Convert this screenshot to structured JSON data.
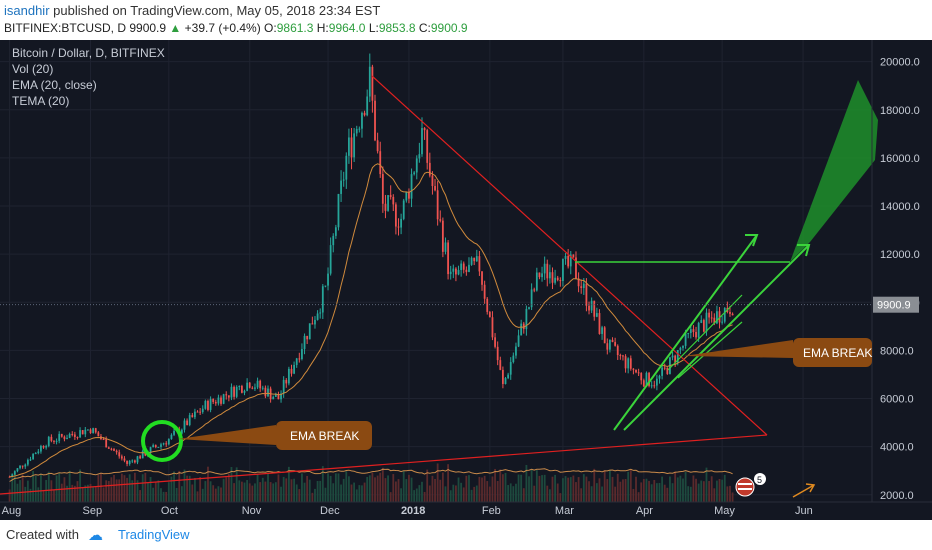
{
  "header": {
    "author": "isandhir",
    "published": "published on TradingView.com, May 05, 2018 23:34 EST",
    "symbol": "BITFINEX:BTCUSD, D",
    "last": "9900.9",
    "up_arrow": "▲",
    "change": "+39.7 (+0.4%)",
    "o_label": "O:",
    "o_val": "9861.3",
    "h_label": "H:",
    "h_val": "9964.0",
    "l_label": "L:",
    "l_val": "9853.8",
    "c_label": "C:",
    "c_val": "9900.9"
  },
  "legend": {
    "title": "Bitcoin / Dollar, D, BITFINEX",
    "vol": "Vol (20)",
    "ema": "EMA (20, close)",
    "tema": "TEMA (20)"
  },
  "annotations": {
    "ema_break_1": "EMA BREAK",
    "ema_break_2": "EMA BREAK",
    "badge_count": "5"
  },
  "footer": {
    "created": "Created with",
    "brand": "TradingView"
  },
  "colors": {
    "background": "#131722",
    "up": "#26a69a",
    "down": "#ef5350",
    "ema": "#d08a3c",
    "trendline": "#e02020",
    "arrow_green": "#3bd43b",
    "callout": "#8b4a12",
    "last_price_bg": "#8a8e94"
  },
  "chart_data": {
    "type": "candlestick",
    "symbol": "BITFINEX:BTCUSD",
    "timeframe": "D",
    "x_ticks": [
      "Aug",
      "Sep",
      "Oct",
      "Nov",
      "Dec",
      "2018",
      "Feb",
      "Mar",
      "Apr",
      "May",
      "Jun"
    ],
    "y_ticks": [
      "2000.0",
      "4000.0",
      "6000.0",
      "8000.0",
      "10000.0",
      "12000.0",
      "14000.0",
      "16000.0",
      "18000.0",
      "20000.0"
    ],
    "ylim": [
      1700,
      20900
    ],
    "last_price_label": "9900.9",
    "last_price": 9900.9,
    "anchors": [
      {
        "date": "2017-08-01",
        "close": 2750
      },
      {
        "date": "2017-08-15",
        "close": 4200
      },
      {
        "date": "2017-09-01",
        "close": 4750
      },
      {
        "date": "2017-09-15",
        "close": 3300
      },
      {
        "date": "2017-10-01",
        "close": 4300
      },
      {
        "date": "2017-10-15",
        "close": 5700
      },
      {
        "date": "2017-11-01",
        "close": 6700
      },
      {
        "date": "2017-11-12",
        "close": 6000
      },
      {
        "date": "2017-11-30",
        "close": 10500
      },
      {
        "date": "2017-12-08",
        "close": 16000
      },
      {
        "date": "2017-12-17",
        "close": 19200
      },
      {
        "date": "2017-12-22",
        "close": 14000
      },
      {
        "date": "2017-12-29",
        "close": 13500
      },
      {
        "date": "2018-01-06",
        "close": 17000
      },
      {
        "date": "2018-01-17",
        "close": 11000
      },
      {
        "date": "2018-01-28",
        "close": 11500
      },
      {
        "date": "2018-02-06",
        "close": 6500
      },
      {
        "date": "2018-02-20",
        "close": 11200
      },
      {
        "date": "2018-03-05",
        "close": 11500
      },
      {
        "date": "2018-03-18",
        "close": 8200
      },
      {
        "date": "2018-04-01",
        "close": 6800
      },
      {
        "date": "2018-04-06",
        "close": 6700
      },
      {
        "date": "2018-04-20",
        "close": 8800
      },
      {
        "date": "2018-05-05",
        "close": 9900.9
      }
    ]
  }
}
